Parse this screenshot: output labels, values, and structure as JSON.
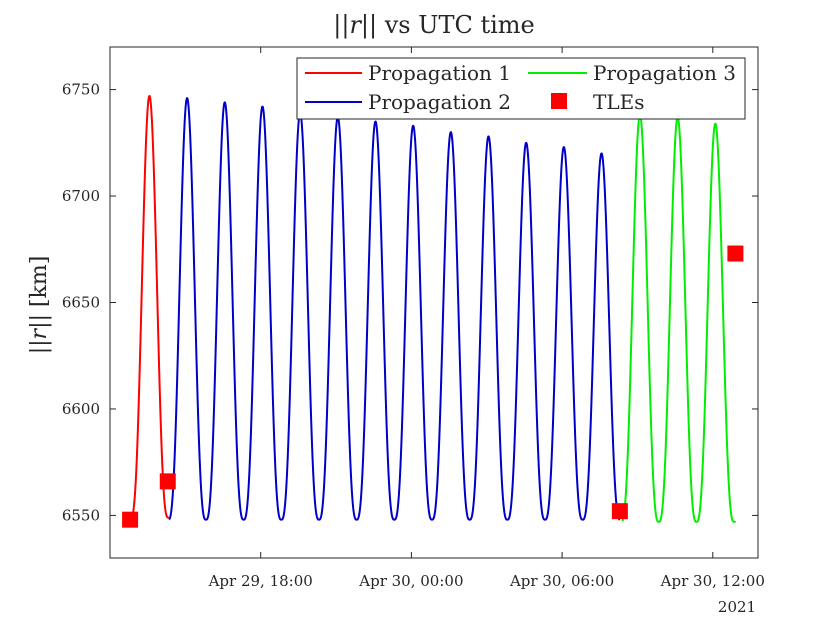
{
  "chart_data": {
    "type": "line",
    "title": "||r|| vs UTC time",
    "title_parts": {
      "bar1": "||",
      "var": "r",
      "bar2": "||",
      "rest": " vs UTC time"
    },
    "ylabel": "||r|| [km]",
    "ylabel_parts": {
      "bar1": "||",
      "var": "r",
      "bar2": "||",
      "rest": " [km]"
    },
    "xlabel": "",
    "x_unit": "hours since 2021-04-29 00:00 UTC",
    "xlim": [
      12.0,
      37.8
    ],
    "ylim": [
      6530,
      6770
    ],
    "x_ticks": [
      {
        "value": 18,
        "label": "Apr 29, 18:00"
      },
      {
        "value": 24,
        "label": "Apr 30, 00:00"
      },
      {
        "value": 30,
        "label": "Apr 30, 06:00"
      },
      {
        "value": 36,
        "label": "Apr 30, 12:00"
      }
    ],
    "x_tick_year": "2021",
    "y_ticks": [
      6550,
      6600,
      6650,
      6700,
      6750
    ],
    "grid": false,
    "legend_placement": "top-right",
    "series": [
      {
        "name": "Propagation 1",
        "color": "#ff0000",
        "style": "line",
        "t_start": 12.8,
        "t_end": 14.35,
        "peak_t": 13.57,
        "period": 1.5,
        "max_values": [
          6747
        ],
        "min_value": 6549
      },
      {
        "name": "Propagation 2",
        "color": "#0000c8",
        "style": "line",
        "t_start": 14.35,
        "t_end": 32.3,
        "peak_t": 15.07,
        "period": 1.5,
        "max_values": [
          6746,
          6744,
          6742,
          6739,
          6737,
          6735,
          6733,
          6730,
          6728,
          6725,
          6723,
          6720
        ],
        "min_value": 6548
      },
      {
        "name": "Propagation 3",
        "color": "#00ee00",
        "style": "line",
        "t_start": 32.4,
        "t_end": 36.9,
        "peak_t": 33.1,
        "period": 1.5,
        "max_values": [
          6738,
          6737,
          6734
        ],
        "min_value": 6547
      },
      {
        "name": "TLEs",
        "color": "#ff0000",
        "style": "marker",
        "points": [
          {
            "x": 12.8,
            "y": 6548
          },
          {
            "x": 14.3,
            "y": 6566
          },
          {
            "x": 32.3,
            "y": 6552
          },
          {
            "x": 36.9,
            "y": 6673
          }
        ]
      }
    ]
  }
}
